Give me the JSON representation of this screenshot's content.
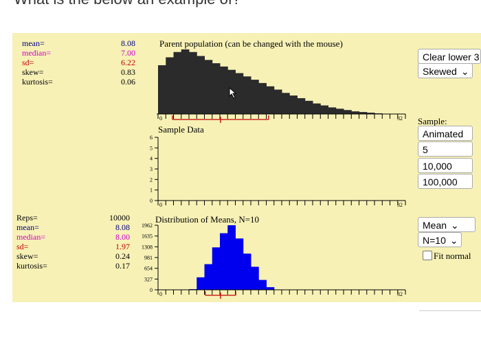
{
  "question": "What is the below an example of?",
  "top_stats": [
    {
      "label": "mean=",
      "value": "8.08",
      "color": "#000080"
    },
    {
      "label": "median=",
      "value": "7.00",
      "color": "#d000d0"
    },
    {
      "label": "sd=",
      "value": "6.22",
      "color": "#c00000"
    },
    {
      "label": "skew=",
      "value": "0.83",
      "color": "#000000"
    },
    {
      "label": "kurtosis=",
      "value": "0.06",
      "color": "#000000"
    }
  ],
  "bottom_stats": [
    {
      "label": "Reps=",
      "value": "10000",
      "color": "#000000"
    },
    {
      "label": "mean=",
      "value": "8.08",
      "color": "#000080"
    },
    {
      "label": "median=",
      "value": "8.00",
      "color": "#d000d0"
    },
    {
      "label": "sd=",
      "value": "1.97",
      "color": "#c00000"
    },
    {
      "label": "skew=",
      "value": "0.24",
      "color": "#000000"
    },
    {
      "label": "kurtosis=",
      "value": "0.17",
      "color": "#000000"
    }
  ],
  "panels": {
    "parent_title": "Parent population (can be changed with the mouse)",
    "sample_title": "Sample Data",
    "means_title": "Distribution of Means, N=10"
  },
  "controls": {
    "clear_label": "Clear lower 3",
    "dist_select": "Skewed",
    "sample_label": "Sample:",
    "animated_label": "Animated",
    "n5_label": "5",
    "n10000_label": "10,000",
    "n100000_label": "100,000",
    "stat_select": "Mean",
    "n_select": "N=10",
    "fit_normal_label": "Fit normal"
  },
  "chart_data": [
    {
      "type": "bar",
      "title": "Parent population (can be changed with the mouse)",
      "color": "#2b2b2b",
      "x_tick_labels": [
        "0",
        "32"
      ],
      "x": [
        0,
        1,
        2,
        3,
        4,
        5,
        6,
        7,
        8,
        9,
        10,
        11,
        12,
        13,
        14,
        15,
        16,
        17,
        18,
        19,
        20,
        21,
        22,
        23,
        24,
        25,
        26,
        27,
        28,
        29,
        30,
        31
      ],
      "values": [
        0.74,
        0.86,
        0.94,
        0.98,
        0.94,
        0.88,
        0.82,
        0.77,
        0.72,
        0.67,
        0.62,
        0.57,
        0.52,
        0.47,
        0.42,
        0.37,
        0.32,
        0.28,
        0.24,
        0.2,
        0.16,
        0.13,
        0.1,
        0.08,
        0.06,
        0.04,
        0.03,
        0.02,
        0.01,
        0.005,
        0,
        0
      ],
      "mean": 8.08,
      "median": 7.0,
      "sd": 6.22
    },
    {
      "type": "bar",
      "title": "Sample Data",
      "x_tick_labels": [
        "0",
        "32"
      ],
      "y_tick_labels": [
        "0",
        "1",
        "2",
        "3",
        "4",
        "5",
        "6"
      ],
      "ylim": [
        0,
        6
      ],
      "values": []
    },
    {
      "type": "bar",
      "title": "Distribution of Means, N=10",
      "color": "#0000ee",
      "x_tick_labels": [
        "0",
        "32"
      ],
      "y_tick_labels": [
        "0",
        "327",
        "654",
        "981",
        "1308",
        "1635",
        "1962"
      ],
      "ylim": [
        0,
        1962
      ],
      "x": [
        0,
        1,
        2,
        3,
        4,
        5,
        6,
        7,
        8,
        9,
        10,
        11,
        12,
        13,
        14,
        15,
        16,
        17,
        18,
        19,
        20,
        21,
        22,
        23,
        24,
        25,
        26,
        27,
        28,
        29,
        30,
        31
      ],
      "values": [
        0,
        0,
        0,
        0,
        20,
        380,
        780,
        1290,
        1720,
        1962,
        1560,
        1100,
        700,
        300,
        80,
        0,
        0,
        0,
        0,
        0,
        0,
        0,
        0,
        0,
        0,
        0,
        0,
        0,
        0,
        0,
        0,
        0
      ],
      "mean": 8.08,
      "median": 8.0,
      "sd": 1.97
    }
  ]
}
